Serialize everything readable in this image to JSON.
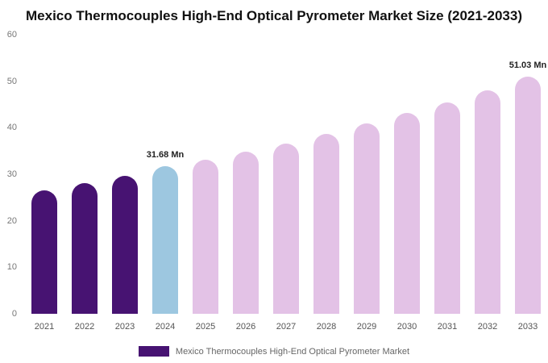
{
  "title": "Mexico Thermocouples High-End Optical Pyrometer Market Size (2021-2033)",
  "legend": {
    "label": "Mexico Thermocouples High-End Optical Pyrometer Market",
    "swatch_color": "#471372"
  },
  "chart_data": {
    "type": "bar",
    "title": "Mexico Thermocouples High-End Optical Pyrometer Market Size (2021-2033)",
    "xlabel": "",
    "ylabel": "",
    "ylim": [
      0,
      60
    ],
    "yticks": [
      0,
      10,
      20,
      30,
      40,
      50,
      60
    ],
    "grid": false,
    "legend_position": "bottom",
    "categories": [
      "2021",
      "2022",
      "2023",
      "2024",
      "2025",
      "2026",
      "2027",
      "2028",
      "2029",
      "2030",
      "2031",
      "2032",
      "2033"
    ],
    "values": [
      26.5,
      28.1,
      29.7,
      31.68,
      33.1,
      34.8,
      36.6,
      38.6,
      40.9,
      43.1,
      45.4,
      48.0,
      51.03
    ],
    "unit": "Mn",
    "colors": {
      "historical_2021_2023": "#471372",
      "base_year_2024": "#9dc7e0",
      "forecast_2025_2033": "#e3c2e6"
    },
    "point_colors": [
      "#471372",
      "#471372",
      "#471372",
      "#9dc7e0",
      "#e3c2e6",
      "#e3c2e6",
      "#e3c2e6",
      "#e3c2e6",
      "#e3c2e6",
      "#e3c2e6",
      "#e3c2e6",
      "#e3c2e6",
      "#e3c2e6"
    ],
    "annotations": [
      {
        "category": "2024",
        "text": "31.68 Mn"
      },
      {
        "category": "2033",
        "text": "51.03 Mn"
      }
    ]
  }
}
